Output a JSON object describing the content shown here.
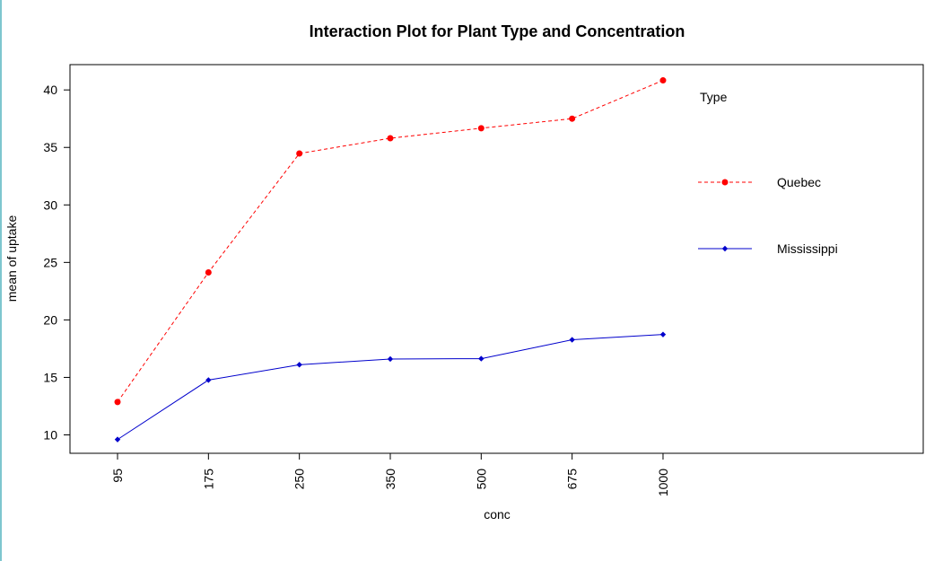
{
  "chart_data": {
    "type": "line",
    "title": "Interaction Plot for Plant Type and Concentration",
    "xlabel": "conc",
    "ylabel": "mean of uptake",
    "categories": [
      "95",
      "175",
      "250",
      "350",
      "500",
      "675",
      "1000"
    ],
    "yticks": [
      10,
      15,
      20,
      25,
      30,
      35,
      40
    ],
    "ylim": [
      8.4,
      42.2
    ],
    "grid": false,
    "legend": {
      "title": "Type",
      "position": "right"
    },
    "series": [
      {
        "name": "Quebec",
        "values": [
          12.86,
          24.13,
          34.47,
          35.8,
          36.67,
          37.5,
          40.83
        ],
        "color": "#ff0000",
        "line_style": "dashed",
        "marker": "circle"
      },
      {
        "name": "Mississippi",
        "values": [
          9.6,
          14.77,
          16.1,
          16.6,
          16.63,
          18.27,
          18.73
        ],
        "color": "#0000cc",
        "line_style": "solid",
        "marker": "diamond"
      }
    ]
  }
}
